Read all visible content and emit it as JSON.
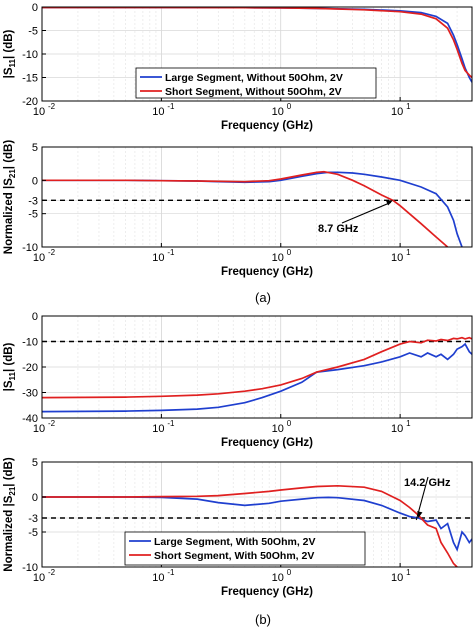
{
  "figure": {
    "caption_a": "(a)",
    "caption_b": "(b)"
  },
  "chart_data": [
    {
      "type": "line",
      "id": "p1",
      "xscale": "log",
      "xlim": [
        0.01,
        40
      ],
      "ylim": [
        -20,
        0
      ],
      "yticks": [
        0,
        -5,
        -10,
        -15,
        -20
      ],
      "xlabel": "Frequency (GHz)",
      "ylabel": "|S11| (dB)",
      "ylabel_parts": [
        "|S",
        "11",
        "| (dB)"
      ],
      "grid": true,
      "legend": {
        "placement": "center-bottom",
        "entries": [
          "Large Segment, Without 50Ohm, 2V",
          "Short Segment, Without 50Ohm, 2V"
        ]
      },
      "series": [
        {
          "name": "Large Segment, Without 50Ohm, 2V",
          "color": "#1f3fcf",
          "x": [
            0.01,
            0.1,
            0.5,
            1,
            2,
            5,
            10,
            15,
            20,
            25,
            28,
            30,
            33,
            35,
            38,
            40
          ],
          "y": [
            -0.1,
            -0.1,
            -0.15,
            -0.2,
            -0.3,
            -0.5,
            -0.8,
            -1.2,
            -2,
            -3.5,
            -6,
            -8,
            -11,
            -13,
            -15,
            -16
          ]
        },
        {
          "name": "Short Segment, Without 50Ohm, 2V",
          "color": "#e02020",
          "x": [
            0.01,
            0.1,
            0.5,
            1,
            2,
            5,
            10,
            15,
            20,
            25,
            28,
            30,
            33,
            35,
            38,
            40
          ],
          "y": [
            -0.1,
            -0.1,
            -0.15,
            -0.2,
            -0.3,
            -0.6,
            -1,
            -1.5,
            -2.5,
            -4.5,
            -7,
            -9,
            -12,
            -13.5,
            -14.5,
            -15
          ]
        }
      ]
    },
    {
      "type": "line",
      "id": "p2",
      "xscale": "log",
      "xlim": [
        0.01,
        40
      ],
      "ylim": [
        -10,
        5
      ],
      "yticks": [
        5,
        0,
        -3,
        -5,
        -10
      ],
      "xlabel": "Frequency (GHz)",
      "ylabel": "Normalized |S21| (dB)",
      "ylabel_parts": [
        "Normalized |S",
        "21",
        "| (dB)"
      ],
      "grid": true,
      "reference_line": {
        "y": -3,
        "style": "dashed"
      },
      "annotations": [
        {
          "text": "8.7 GHz",
          "x": 8.7,
          "y": -3
        }
      ],
      "series": [
        {
          "name": "Large Segment, Without 50Ohm, 2V",
          "color": "#1f3fcf",
          "x": [
            0.01,
            0.05,
            0.1,
            0.2,
            0.3,
            0.5,
            0.8,
            1,
            1.5,
            2,
            2.5,
            3,
            4,
            5,
            7,
            10,
            15,
            20,
            25,
            28,
            30,
            33
          ],
          "y": [
            0,
            0,
            -0.05,
            -0.1,
            -0.2,
            -0.3,
            -0.2,
            0,
            0.6,
            1.0,
            1.2,
            1.2,
            1.1,
            0.9,
            0.5,
            0,
            -1,
            -2,
            -4,
            -6,
            -8,
            -10
          ]
        },
        {
          "name": "Short Segment, Without 50Ohm, 2V",
          "color": "#e02020",
          "x": [
            0.01,
            0.05,
            0.1,
            0.2,
            0.3,
            0.5,
            0.8,
            1,
            1.5,
            2,
            2.3,
            3,
            4,
            5,
            7,
            8.7,
            10,
            15,
            20,
            25
          ],
          "y": [
            0,
            0,
            -0.05,
            -0.1,
            -0.15,
            -0.2,
            -0.05,
            0.2,
            0.8,
            1.2,
            1.3,
            0.9,
            0,
            -0.8,
            -2.2,
            -3,
            -3.8,
            -6.5,
            -8.5,
            -10
          ]
        }
      ]
    },
    {
      "type": "line",
      "id": "p3",
      "xscale": "log",
      "xlim": [
        0.01,
        40
      ],
      "ylim": [
        -40,
        0
      ],
      "yticks": [
        0,
        -10,
        -20,
        -30,
        -40
      ],
      "xlabel": "Frequency (GHz)",
      "ylabel": "|S11| (dB)",
      "ylabel_parts": [
        "|S",
        "11",
        "| (dB)"
      ],
      "grid": true,
      "reference_line": {
        "y": -10,
        "style": "dashed"
      },
      "series": [
        {
          "name": "Large Segment, With 50Ohm, 2V",
          "color": "#1f3fcf",
          "x": [
            0.01,
            0.05,
            0.1,
            0.2,
            0.3,
            0.5,
            0.7,
            1,
            1.5,
            2,
            3,
            5,
            7,
            10,
            12,
            15,
            17,
            20,
            22,
            25,
            28,
            30,
            33,
            35,
            38,
            40
          ],
          "y": [
            -37.5,
            -37.3,
            -37,
            -36.5,
            -35.8,
            -34,
            -32,
            -29.5,
            -26,
            -22,
            -21,
            -19.5,
            -18,
            -16,
            -14.5,
            -16,
            -14.5,
            -16,
            -15,
            -17,
            -15,
            -13,
            -12,
            -11,
            -14,
            -15
          ]
        },
        {
          "name": "Short Segment, With 50Ohm, 2V",
          "color": "#e02020",
          "x": [
            0.01,
            0.05,
            0.1,
            0.2,
            0.3,
            0.5,
            0.7,
            1,
            1.5,
            2,
            3,
            5,
            7,
            10,
            12,
            15,
            17,
            20,
            22,
            25,
            28,
            30,
            33,
            35,
            38,
            40
          ],
          "y": [
            -32,
            -31.8,
            -31.5,
            -31,
            -30.5,
            -29.5,
            -28.5,
            -27,
            -24.5,
            -22,
            -20,
            -17,
            -14,
            -11,
            -10,
            -10.5,
            -9.5,
            -9.8,
            -9.2,
            -9.6,
            -8.8,
            -9,
            -8.5,
            -9,
            -8.5,
            -9
          ]
        }
      ]
    },
    {
      "type": "line",
      "id": "p4",
      "xscale": "log",
      "xlim": [
        0.01,
        40
      ],
      "ylim": [
        -10,
        5
      ],
      "yticks": [
        5,
        0,
        -3,
        -5,
        -10
      ],
      "xlabel": "Frequency (GHz)",
      "ylabel": "Normalized |S21| (dB)",
      "ylabel_parts": [
        "Normalized |S",
        "21",
        "| (dB)"
      ],
      "grid": true,
      "reference_line": {
        "y": -3,
        "style": "dashed"
      },
      "annotations": [
        {
          "text": "14.2 GHz",
          "x": 14.2,
          "y": -3
        }
      ],
      "legend": {
        "placement": "bottom-left",
        "entries": [
          "Large Segment, With 50Ohm, 2V",
          "Short Segment, With 50Ohm, 2V"
        ]
      },
      "series": [
        {
          "name": "Large Segment, With 50Ohm, 2V",
          "color": "#1f3fcf",
          "x": [
            0.01,
            0.05,
            0.1,
            0.2,
            0.3,
            0.5,
            0.8,
            1,
            1.5,
            2,
            2.5,
            3,
            5,
            7,
            10,
            12,
            14.2,
            17,
            20,
            22,
            25,
            28,
            30,
            33,
            35,
            38,
            40
          ],
          "y": [
            0,
            0,
            -0.05,
            -0.3,
            -0.8,
            -1.2,
            -0.9,
            -0.6,
            -0.3,
            -0.1,
            -0.05,
            -0.1,
            -0.5,
            -1.2,
            -2.3,
            -2.8,
            -3,
            -3.5,
            -3.3,
            -4.5,
            -3.8,
            -6.5,
            -7.5,
            -5,
            -5.5,
            -6.5,
            -6
          ]
        },
        {
          "name": "Short Segment, With 50Ohm, 2V",
          "color": "#e02020",
          "x": [
            0.01,
            0.05,
            0.1,
            0.2,
            0.3,
            0.5,
            0.8,
            1,
            1.5,
            2,
            3,
            5,
            7,
            10,
            12,
            14,
            17,
            20,
            22,
            25,
            28,
            30
          ],
          "y": [
            0,
            0,
            0.05,
            0.1,
            0.2,
            0.5,
            0.8,
            1.0,
            1.3,
            1.5,
            1.6,
            1.4,
            0.8,
            -0.5,
            -1.5,
            -2.5,
            -4,
            -4.5,
            -6.5,
            -8,
            -9.5,
            -10
          ]
        }
      ]
    }
  ]
}
